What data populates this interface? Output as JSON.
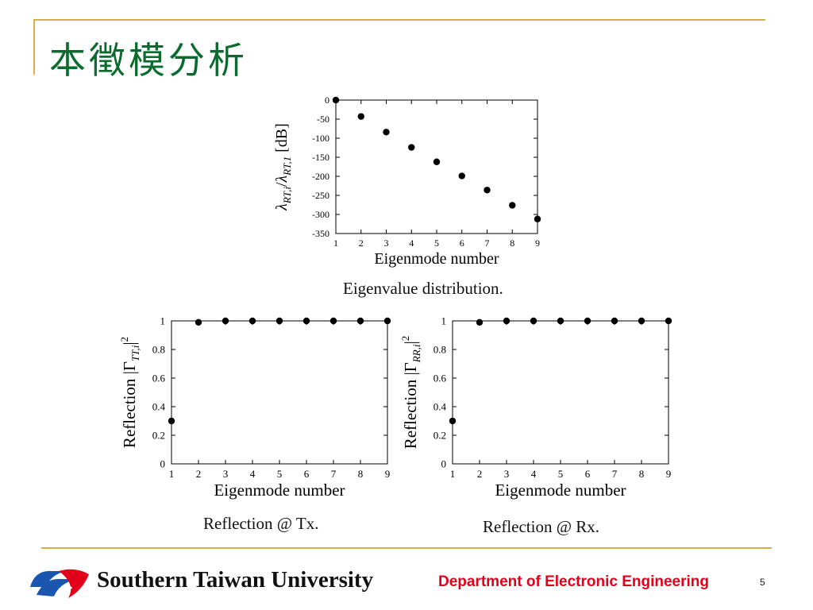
{
  "slide": {
    "title": "本徵模分析",
    "page_number": "5"
  },
  "captions": {
    "eigen": "Eigenvalue distribution.",
    "tx": "Reflection @ Tx.",
    "rx": "Reflection @ Rx."
  },
  "footer": {
    "university": "Southern Taiwan University",
    "department": "Department of Electronic Engineering",
    "accent_gold": "#d8b04a",
    "dept_color": "#e3001b",
    "title_color": "#0b6b2e"
  },
  "chart_data": [
    {
      "id": "eigen",
      "type": "scatter",
      "xlabel": "Eigenmode number",
      "ylabel": {
        "lambda1": "λ",
        "sub1": "RT,i",
        "slash": "/",
        "lambda2": "λ",
        "sub2": "RT,1",
        "unit": " [dB]"
      },
      "x": [
        1,
        2,
        3,
        4,
        5,
        6,
        7,
        8,
        9
      ],
      "y": [
        0,
        -43,
        -84,
        -124,
        -162,
        -199,
        -236,
        -276,
        -312
      ],
      "xlim": [
        1,
        9
      ],
      "ylim": [
        -350,
        0
      ],
      "xticks": [
        "1",
        "2",
        "3",
        "4",
        "5",
        "6",
        "7",
        "8",
        "9"
      ],
      "yticks": [
        0,
        -50,
        -100,
        -150,
        -200,
        -250,
        -300,
        -350
      ],
      "ytick_labels": [
        "0",
        "-50",
        "-100",
        "-150",
        "-200",
        "-250",
        "-300",
        "-350"
      ],
      "grid": false
    },
    {
      "id": "tx",
      "type": "scatter",
      "xlabel": "Eigenmode number",
      "ylabel": {
        "prefix": "Reflection |Γ",
        "sub": "TT,i",
        "suffix": "|",
        "sup": "2"
      },
      "x": [
        1,
        2,
        3,
        4,
        5,
        6,
        7,
        8,
        9
      ],
      "y": [
        0.3,
        0.99,
        1.0,
        1.0,
        1.0,
        1.0,
        1.0,
        1.0,
        1.0
      ],
      "xlim": [
        1,
        9
      ],
      "ylim": [
        0,
        1
      ],
      "xticks": [
        "1",
        "2",
        "3",
        "4",
        "5",
        "6",
        "7",
        "8",
        "9"
      ],
      "yticks": [
        0,
        0.2,
        0.4,
        0.6,
        0.8,
        1
      ],
      "ytick_labels": [
        "0",
        "0.2",
        "0.4",
        "0.6",
        "0.8",
        "1"
      ],
      "grid": false
    },
    {
      "id": "rx",
      "type": "scatter",
      "xlabel": "Eigenmode number",
      "ylabel": {
        "prefix": "Reflection |Γ",
        "sub": "RR,i",
        "suffix": "|",
        "sup": "2"
      },
      "x": [
        1,
        2,
        3,
        4,
        5,
        6,
        7,
        8,
        9
      ],
      "y": [
        0.3,
        0.99,
        1.0,
        1.0,
        1.0,
        1.0,
        1.0,
        1.0,
        1.0
      ],
      "xlim": [
        1,
        9
      ],
      "ylim": [
        0,
        1
      ],
      "xticks": [
        "1",
        "2",
        "3",
        "4",
        "5",
        "6",
        "7",
        "8",
        "9"
      ],
      "yticks": [
        0,
        0.2,
        0.4,
        0.6,
        0.8,
        1
      ],
      "ytick_labels": [
        "0",
        "0.2",
        "0.4",
        "0.6",
        "0.8",
        "1"
      ],
      "grid": false
    }
  ]
}
